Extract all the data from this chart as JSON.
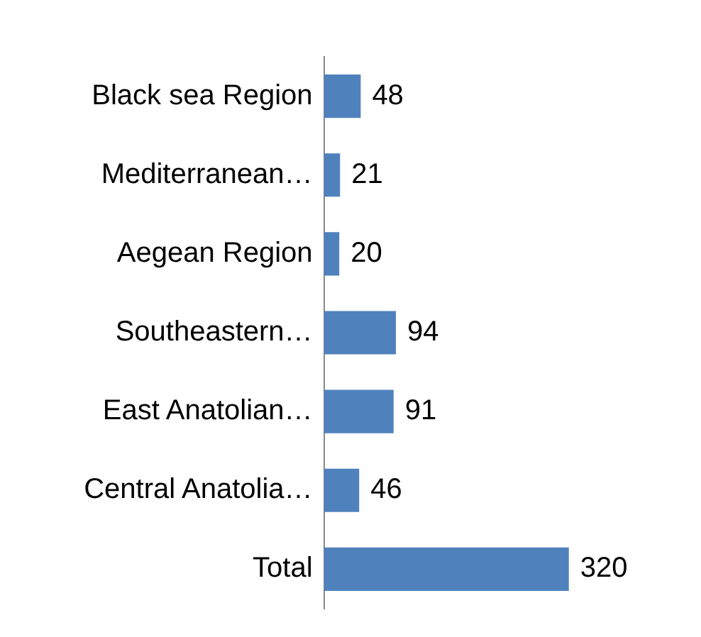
{
  "chart_data": {
    "type": "bar",
    "orientation": "horizontal",
    "categories": [
      "Black sea Region",
      "Mediterranean…",
      "Aegean Region",
      "Southeastern…",
      "East Anatolian…",
      "Central Anatolia…",
      "Total"
    ],
    "values": [
      48,
      21,
      20,
      94,
      91,
      46,
      320
    ],
    "color": "#4f81bd",
    "data_labels": true,
    "grid": false,
    "legend": false
  }
}
